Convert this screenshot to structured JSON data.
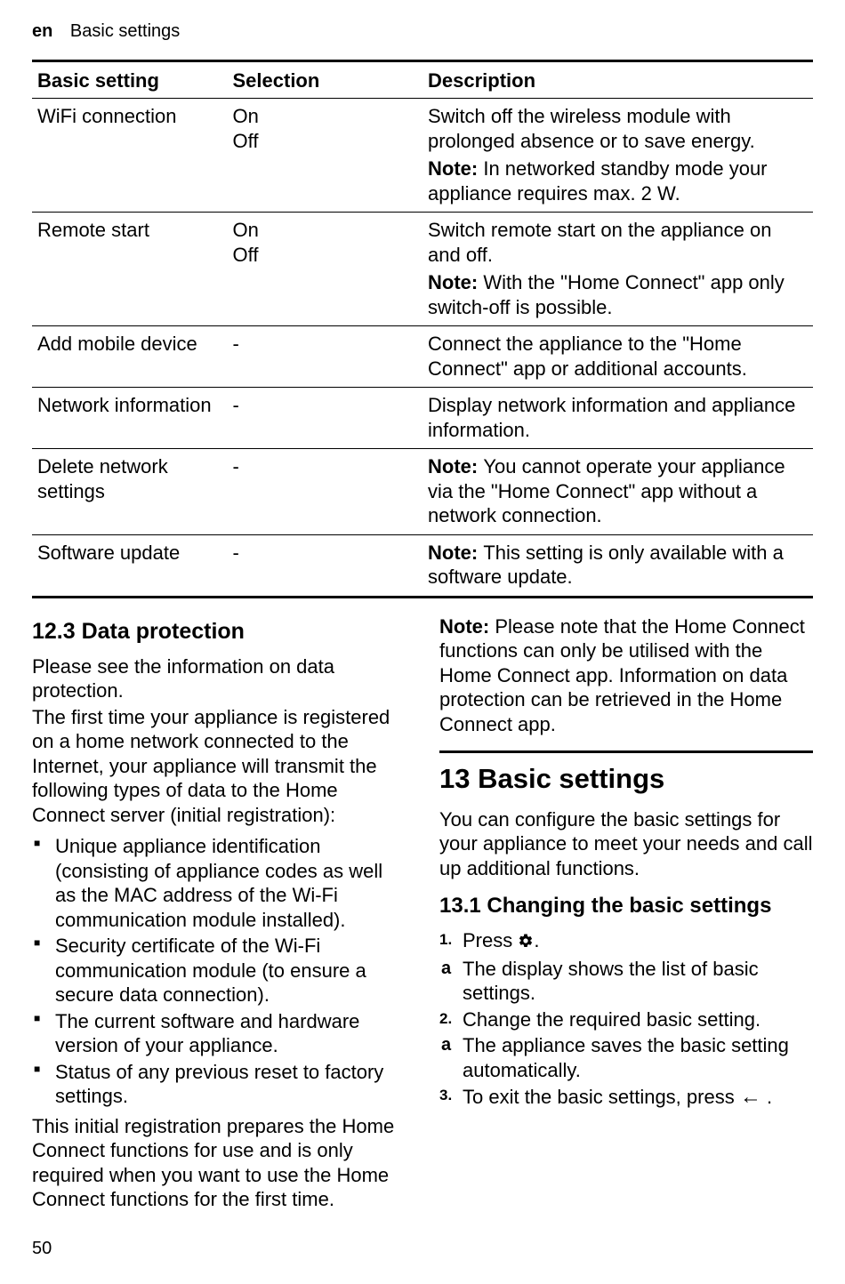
{
  "header": {
    "lang": "en",
    "title": "Basic settings"
  },
  "table": {
    "headers": {
      "setting": "Basic setting",
      "selection": "Selection",
      "description": "Description"
    },
    "rows": [
      {
        "setting": "WiFi connection",
        "selection": "On\nOff",
        "desc": "Switch off the wireless module with prolonged absence or to save energy.",
        "note": "In networked standby mode your appliance requires max. 2 W."
      },
      {
        "setting": "Remote start",
        "selection": "On\nOff",
        "desc": "Switch remote start on the appliance on and off.",
        "note": "With the \"Home Connect\" app only switch-off is possible."
      },
      {
        "setting": "Add mobile device",
        "selection": "-",
        "desc": "Connect the appliance to the \"Home Connect\" app or additional accounts.",
        "note": ""
      },
      {
        "setting": "Network information",
        "selection": "-",
        "desc": "Display network information and appliance information.",
        "note": ""
      },
      {
        "setting": "Delete network settings",
        "selection": "-",
        "desc": "",
        "note": "You cannot operate your appliance via the \"Home Connect\" app without a network connection."
      },
      {
        "setting": "Software update",
        "selection": "-",
        "desc": "",
        "note": "This setting is only available with a software update."
      }
    ]
  },
  "left": {
    "heading": "12.3  Data protection",
    "intro1": "Please see the information on data protection.",
    "intro2": "The first time your appliance is registered on a home network connected to the Internet, your appliance will transmit the following types of data to the Home Connect server (initial registration):",
    "bullets": [
      "Unique appliance identification (consisting of appliance codes as well as the MAC address of the Wi-Fi communication module installed).",
      "Security certificate of the Wi-Fi communication module (to ensure a secure data connection).",
      "The current software and hardware version of your appliance.",
      "Status of any previous reset to factory settings."
    ],
    "para2": "This initial registration prepares the Home Connect functions for use and is only required when you want to use the Home Connect functions for the first time."
  },
  "right": {
    "note": "Please note that the Home Connect functions can only be utilised with the Home Connect app. Information on data protection can be retrieved in the Home Connect app.",
    "chapter": "13  Basic settings",
    "chapterIntro": "You can configure the basic settings for your appliance to meet your needs and call up additional functions.",
    "subheading": "13.1  Changing the basic settings",
    "steps": {
      "s1a": "Press ",
      "s1b": ".",
      "r1": "The display shows the list of basic settings.",
      "s2": "Change the required basic setting.",
      "r2": "The appliance saves the basic setting automatically.",
      "s3a": "To exit the basic settings, press ",
      "s3b": "."
    }
  },
  "noteLabel": "Note:",
  "pageNumber": "50"
}
